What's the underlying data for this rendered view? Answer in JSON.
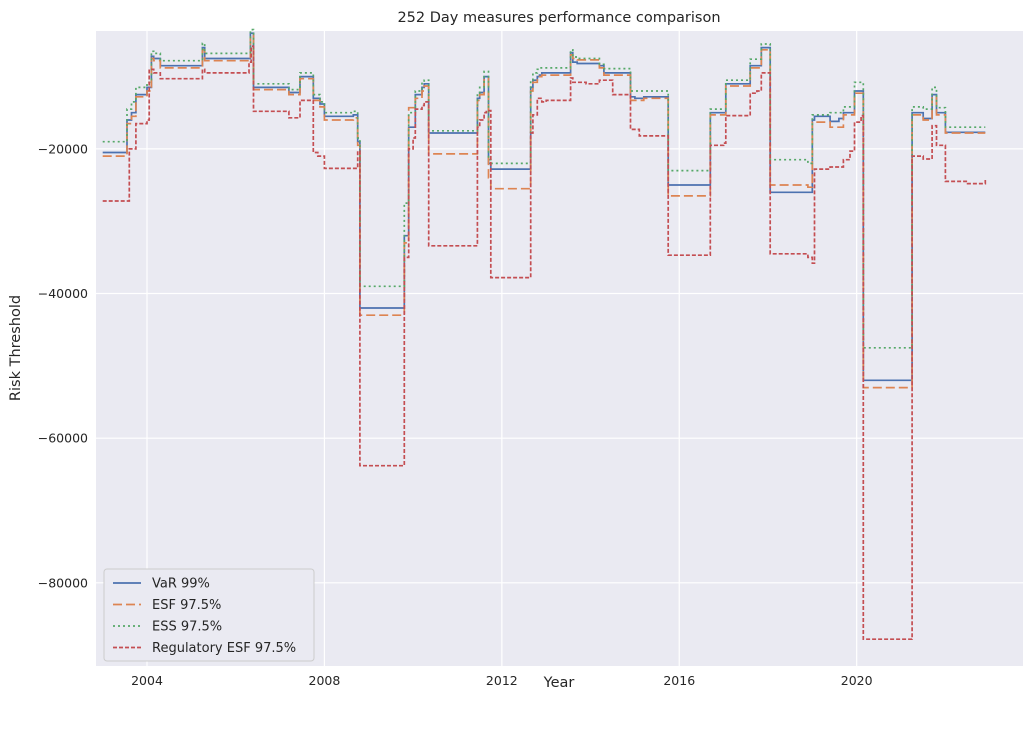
{
  "chart_data": {
    "type": "line",
    "title": "252 Day measures performance comparison",
    "xlabel": "Year",
    "ylabel": "Risk Threshold",
    "xlim": [
      2002.85,
      2023.75
    ],
    "ylim": [
      -91500,
      -3700
    ],
    "x_ticks": [
      2004,
      2008,
      2012,
      2016,
      2020
    ],
    "y_ticks": [
      -80000,
      -60000,
      -40000,
      -20000
    ],
    "grid": true,
    "legend_position": "lower-left",
    "background": "#eaeaf2",
    "series": [
      {
        "name": "VaR 99%",
        "color": "#4c72b0",
        "dash": "",
        "x": [
          2003.0,
          2003.5,
          2003.55,
          2003.65,
          2003.75,
          2004.0,
          2004.1,
          2004.15,
          2004.3,
          2005.2,
          2005.25,
          2005.3,
          2006.3,
          2006.33,
          2006.4,
          2007.0,
          2007.2,
          2007.3,
          2007.45,
          2007.75,
          2007.9,
          2008.0,
          2008.6,
          2008.65,
          2008.75,
          2008.8,
          2009.75,
          2009.8,
          2009.9,
          2010.0,
          2010.05,
          2010.2,
          2010.25,
          2010.35,
          2011.4,
          2011.45,
          2011.5,
          2011.6,
          2011.65,
          2011.7,
          2011.75,
          2011.8,
          2012.6,
          2012.65,
          2012.7,
          2012.8,
          2012.85,
          2012.9,
          2013.2,
          2013.5,
          2013.55,
          2013.6,
          2013.7,
          2013.9,
          2014.2,
          2014.3,
          2014.8,
          2014.9,
          2015.0,
          2015.2,
          2015.35,
          2015.7,
          2015.75,
          2016.65,
          2016.7,
          2017.0,
          2017.05,
          2017.4,
          2017.6,
          2017.75,
          2017.85,
          2018.0,
          2018.05,
          2018.9,
          2019.0,
          2019.05,
          2019.3,
          2019.4,
          2019.6,
          2019.7,
          2019.85,
          2019.95,
          2020.1,
          2020.15,
          2020.2,
          2021.2,
          2021.25,
          2021.5,
          2021.65,
          2021.7,
          2021.8,
          2022.0,
          2022.9
        ],
        "y": [
          -20500,
          -20500,
          -16000,
          -15000,
          -12500,
          -11500,
          -7200,
          -7500,
          -8500,
          -8500,
          -6000,
          -7500,
          -7500,
          -4000,
          -11500,
          -11500,
          -12200,
          -12200,
          -10000,
          -13000,
          -13800,
          -15500,
          -15500,
          -15300,
          -19000,
          -42000,
          -42000,
          -32000,
          -17000,
          -17000,
          -12500,
          -11500,
          -11000,
          -17800,
          -17800,
          -13000,
          -12200,
          -10000,
          -10000,
          -22000,
          -22800,
          -22800,
          -22800,
          -11500,
          -10500,
          -10000,
          -9800,
          -9500,
          -9500,
          -9500,
          -6700,
          -8000,
          -8200,
          -8200,
          -8500,
          -9500,
          -9500,
          -12800,
          -13000,
          -12800,
          -12800,
          -12800,
          -25000,
          -25000,
          -15000,
          -15000,
          -11000,
          -11000,
          -8500,
          -8500,
          -6000,
          -6000,
          -26000,
          -26000,
          -16000,
          -15500,
          -15500,
          -16200,
          -15800,
          -15000,
          -15000,
          -12000,
          -12000,
          -52000,
          -52000,
          -52000,
          -15000,
          -15800,
          -15800,
          -12500,
          -15000,
          -17700,
          -17700
        ]
      },
      {
        "name": "ESF 97.5%",
        "color": "#dd8452",
        "dash": "9,4",
        "x": [
          2003.0,
          2003.5,
          2003.55,
          2003.65,
          2003.75,
          2004.0,
          2004.1,
          2004.15,
          2004.3,
          2005.2,
          2005.25,
          2005.3,
          2006.3,
          2006.33,
          2006.4,
          2007.0,
          2007.2,
          2007.3,
          2007.45,
          2007.75,
          2007.9,
          2008.0,
          2008.6,
          2008.65,
          2008.75,
          2008.8,
          2009.75,
          2009.8,
          2009.9,
          2010.0,
          2010.05,
          2010.2,
          2010.25,
          2010.35,
          2011.4,
          2011.45,
          2011.5,
          2011.6,
          2011.65,
          2011.7,
          2011.75,
          2011.8,
          2012.6,
          2012.65,
          2012.7,
          2012.8,
          2012.85,
          2012.9,
          2013.2,
          2013.5,
          2013.55,
          2013.6,
          2013.7,
          2013.9,
          2014.2,
          2014.3,
          2014.8,
          2014.9,
          2015.0,
          2015.2,
          2015.35,
          2015.7,
          2015.75,
          2016.65,
          2016.7,
          2017.0,
          2017.05,
          2017.4,
          2017.6,
          2017.75,
          2017.85,
          2018.0,
          2018.05,
          2018.9,
          2019.0,
          2019.05,
          2019.3,
          2019.4,
          2019.6,
          2019.7,
          2019.85,
          2019.95,
          2020.1,
          2020.15,
          2020.2,
          2021.2,
          2021.25,
          2021.5,
          2021.65,
          2021.7,
          2021.8,
          2022.0,
          2022.9
        ],
        "y": [
          -21000,
          -21000,
          -16500,
          -15500,
          -12800,
          -12000,
          -7500,
          -7800,
          -8800,
          -8800,
          -6300,
          -7800,
          -7800,
          -4300,
          -11800,
          -11800,
          -12500,
          -12500,
          -10300,
          -13300,
          -14200,
          -16000,
          -16000,
          -15700,
          -19500,
          -43000,
          -43000,
          -33000,
          -14300,
          -14300,
          -13000,
          -12000,
          -11300,
          -20700,
          -20700,
          -13300,
          -12500,
          -10300,
          -10300,
          -24000,
          -25500,
          -25500,
          -25500,
          -12000,
          -10800,
          -10300,
          -10000,
          -9800,
          -9800,
          -9800,
          -7000,
          -7500,
          -7700,
          -7700,
          -8800,
          -9800,
          -9800,
          -13300,
          -13300,
          -13000,
          -13000,
          -13000,
          -26500,
          -26500,
          -15300,
          -15300,
          -11300,
          -11300,
          -8800,
          -8800,
          -6300,
          -6300,
          -25000,
          -25300,
          -16300,
          -16300,
          -16300,
          -17000,
          -17000,
          -15300,
          -15300,
          -12300,
          -12300,
          -53000,
          -53000,
          -53000,
          -15300,
          -16000,
          -16000,
          -12800,
          -15300,
          -17800,
          -17800
        ]
      },
      {
        "name": "ESS 97.5%",
        "color": "#55a868",
        "dash": "2,3",
        "x": [
          2003.0,
          2003.5,
          2003.55,
          2003.65,
          2003.75,
          2004.0,
          2004.1,
          2004.15,
          2004.3,
          2005.2,
          2005.25,
          2005.3,
          2006.3,
          2006.33,
          2006.4,
          2007.0,
          2007.2,
          2007.3,
          2007.45,
          2007.75,
          2007.9,
          2008.0,
          2008.6,
          2008.65,
          2008.75,
          2008.8,
          2009.75,
          2009.8,
          2009.9,
          2010.0,
          2010.05,
          2010.2,
          2010.25,
          2010.35,
          2011.4,
          2011.45,
          2011.5,
          2011.6,
          2011.65,
          2011.7,
          2011.75,
          2011.8,
          2012.6,
          2012.65,
          2012.7,
          2012.8,
          2012.85,
          2012.9,
          2013.2,
          2013.5,
          2013.55,
          2013.6,
          2013.7,
          2013.9,
          2014.2,
          2014.3,
          2014.8,
          2014.9,
          2015.0,
          2015.2,
          2015.35,
          2015.7,
          2015.75,
          2016.65,
          2016.7,
          2017.0,
          2017.05,
          2017.4,
          2017.6,
          2017.75,
          2017.85,
          2018.0,
          2018.05,
          2018.9,
          2019.0,
          2019.05,
          2019.3,
          2019.4,
          2019.6,
          2019.7,
          2019.85,
          2019.95,
          2020.1,
          2020.15,
          2020.2,
          2021.2,
          2021.25,
          2021.5,
          2021.65,
          2021.7,
          2021.8,
          2022.0,
          2022.9
        ],
        "y": [
          -19000,
          -19000,
          -14500,
          -13500,
          -11500,
          -10800,
          -6500,
          -6800,
          -7800,
          -7800,
          -5400,
          -6800,
          -6800,
          -3500,
          -11000,
          -11000,
          -11800,
          -11800,
          -9500,
          -12500,
          -13500,
          -15000,
          -15000,
          -14800,
          -18500,
          -39000,
          -39000,
          -27500,
          -15000,
          -15000,
          -12000,
          -10800,
          -10500,
          -17500,
          -17500,
          -12300,
          -11500,
          -9300,
          -9300,
          -21500,
          -22000,
          -22000,
          -22000,
          -10500,
          -9500,
          -9000,
          -8800,
          -8800,
          -8800,
          -8800,
          -6300,
          -7300,
          -7500,
          -7500,
          -8300,
          -8900,
          -8900,
          -12000,
          -12000,
          -12000,
          -12000,
          -12000,
          -23000,
          -23000,
          -14500,
          -14500,
          -10500,
          -10500,
          -7600,
          -7600,
          -5500,
          -5500,
          -21500,
          -22000,
          -15300,
          -15300,
          -15300,
          -15000,
          -15000,
          -14200,
          -14200,
          -10800,
          -10800,
          -47500,
          -47500,
          -47500,
          -14200,
          -14500,
          -14500,
          -11500,
          -14300,
          -17000,
          -17000
        ]
      },
      {
        "name": "Regulatory ESF 97.5%",
        "color": "#c44e52",
        "dash": "4,2",
        "x": [
          2003.0,
          2003.55,
          2003.6,
          2003.75,
          2004.0,
          2004.05,
          2004.15,
          2004.3,
          2005.0,
          2005.25,
          2005.3,
          2006.25,
          2006.3,
          2006.35,
          2006.4,
          2007.0,
          2007.2,
          2007.3,
          2007.45,
          2007.75,
          2007.85,
          2008.0,
          2008.6,
          2008.65,
          2008.75,
          2008.8,
          2009.75,
          2009.8,
          2009.9,
          2010.0,
          2010.05,
          2010.2,
          2010.25,
          2010.35,
          2011.4,
          2011.45,
          2011.5,
          2011.6,
          2011.65,
          2011.75,
          2012.6,
          2012.65,
          2012.7,
          2012.8,
          2012.9,
          2013.0,
          2013.5,
          2013.55,
          2013.6,
          2013.9,
          2014.2,
          2014.5,
          2014.8,
          2014.9,
          2015.1,
          2015.7,
          2015.75,
          2016.65,
          2016.7,
          2017.0,
          2017.05,
          2017.4,
          2017.6,
          2017.75,
          2017.85,
          2018.0,
          2018.05,
          2018.9,
          2019.0,
          2019.05,
          2019.4,
          2019.5,
          2019.7,
          2019.85,
          2019.95,
          2020.1,
          2020.15,
          2020.2,
          2021.2,
          2021.25,
          2021.5,
          2021.65,
          2021.7,
          2021.8,
          2022.0,
          2022.5,
          2022.9
        ],
        "y": [
          -27200,
          -27200,
          -20000,
          -16500,
          -16000,
          -9000,
          -9500,
          -10300,
          -10300,
          -9000,
          -9500,
          -9500,
          -8000,
          -5800,
          -14800,
          -14800,
          -15700,
          -15700,
          -13300,
          -20500,
          -21000,
          -22700,
          -22700,
          -22700,
          -20300,
          -63800,
          -63800,
          -35000,
          -20000,
          -18500,
          -14500,
          -14000,
          -13500,
          -33400,
          -33400,
          -17000,
          -16000,
          -15000,
          -14700,
          -37800,
          -37800,
          -17800,
          -15300,
          -13000,
          -13500,
          -13300,
          -13300,
          -10200,
          -10800,
          -11000,
          -10500,
          -12500,
          -12500,
          -17300,
          -18200,
          -18200,
          -34700,
          -34700,
          -19500,
          -19200,
          -15400,
          -15400,
          -12300,
          -12000,
          -9500,
          -9500,
          -34500,
          -35000,
          -35800,
          -22800,
          -22500,
          -22500,
          -21500,
          -20300,
          -16300,
          -15400,
          -87800,
          -87800,
          -87800,
          -21000,
          -21400,
          -21400,
          -16800,
          -19500,
          -24500,
          -24800,
          -24200
        ]
      }
    ]
  }
}
